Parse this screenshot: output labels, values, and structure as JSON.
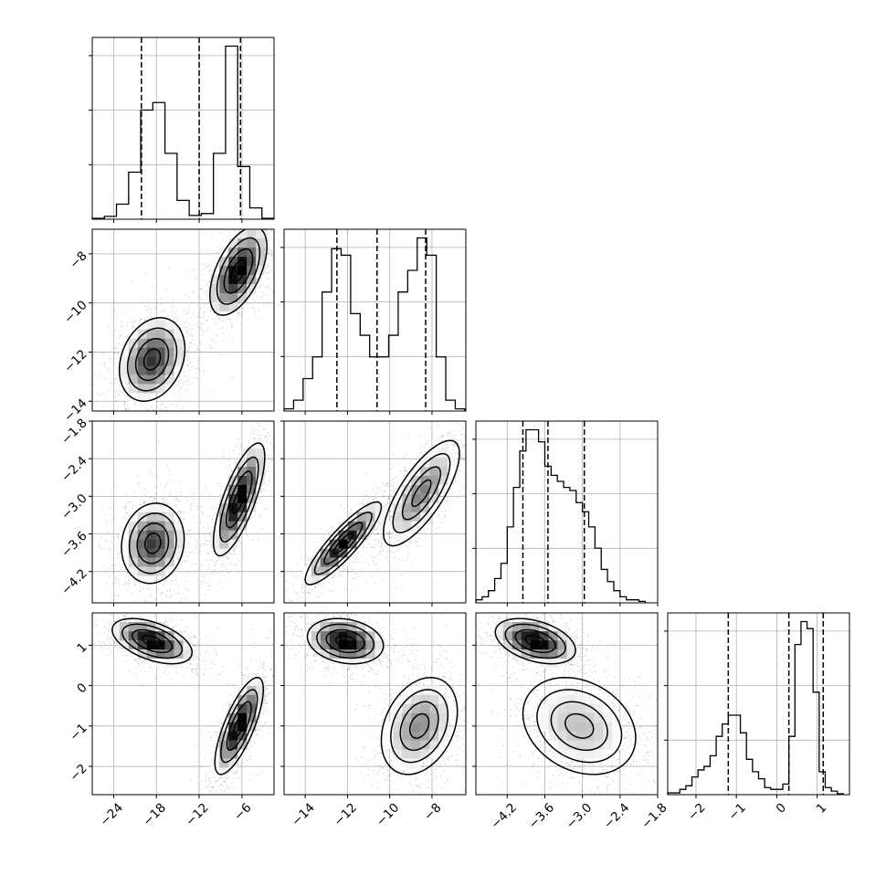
{
  "chart_data": {
    "type": "corner",
    "title": "",
    "n_params": 4,
    "params": [
      {
        "xlim": [
          -27,
          -1.5
        ],
        "ticks": [
          -24,
          -18,
          -12,
          -6
        ],
        "tick_labels": [
          "−24",
          "−18",
          "−12",
          "−6"
        ],
        "quantiles": [
          -20.1,
          -12.0,
          -6.2
        ],
        "hist": {
          "bin_edges": [
            -27,
            -25.3,
            -23.6,
            -21.9,
            -20.2,
            -18.5,
            -16.8,
            -15.1,
            -13.4,
            -11.7,
            -10.0,
            -8.3,
            -6.6,
            -4.9,
            -3.2,
            -1.5
          ],
          "counts": [
            0.5,
            1.5,
            8,
            25,
            58,
            62,
            35,
            10,
            2,
            3,
            35,
            92,
            28,
            6,
            0.5
          ]
        }
      },
      {
        "xlim": [
          -15,
          -6.4
        ],
        "ylim": [
          -14.4,
          -7.0
        ],
        "ticks": [
          -14,
          -12,
          -10,
          -8
        ],
        "tick_labels": [
          "−14",
          "−12",
          "−10",
          "−8"
        ],
        "quantiles": [
          -12.5,
          -10.6,
          -8.3
        ],
        "hist": {
          "bin_edges": [
            -15,
            -14.55,
            -14.1,
            -13.65,
            -13.2,
            -12.75,
            -12.3,
            -11.85,
            -11.4,
            -10.95,
            -10.5,
            -10.05,
            -9.6,
            -9.15,
            -8.7,
            -8.25,
            -7.8,
            -7.35,
            -6.9,
            -6.45
          ],
          "counts": [
            1,
            5,
            15,
            25,
            55,
            75,
            72,
            45,
            35,
            25,
            25,
            35,
            55,
            65,
            80,
            72,
            25,
            5,
            1
          ]
        }
      },
      {
        "xlim": [
          -4.7,
          -1.8
        ],
        "ylim": [
          -4.7,
          -1.8
        ],
        "ticks": [
          -4.2,
          -3.6,
          -3.0,
          -2.4,
          -1.8
        ],
        "tick_labels": [
          "−4.2",
          "−3.6",
          "−3.0",
          "−2.4",
          "−1.8"
        ],
        "quantiles": [
          -3.95,
          -3.55,
          -2.97
        ],
        "hist": {
          "bin_edges": [
            -4.7,
            -4.6,
            -4.5,
            -4.4,
            -4.3,
            -4.2,
            -4.1,
            -4.0,
            -3.9,
            -3.8,
            -3.7,
            -3.6,
            -3.5,
            -3.4,
            -3.3,
            -3.2,
            -3.1,
            -3.0,
            -2.9,
            -2.8,
            -2.7,
            -2.6,
            -2.5,
            -2.4,
            -2.3,
            -2.2,
            -2.1,
            -2.0
          ],
          "counts": [
            1,
            2,
            4,
            8,
            13,
            25,
            38,
            50,
            57,
            57,
            53,
            45,
            42,
            40,
            38,
            37,
            33,
            30,
            25,
            18,
            11,
            7,
            4,
            2,
            1,
            1,
            0.5
          ]
        }
      },
      {
        "xlim": [
          -2.7,
          1.8
        ],
        "ylim": [
          -2.7,
          1.8
        ],
        "ticks": [
          -2,
          -1,
          0,
          1
        ],
        "tick_labels": [
          "−2",
          "−1",
          "0",
          "1"
        ],
        "quantiles": [
          -1.2,
          0.3,
          1.15
        ],
        "hist": {
          "bin_edges": [
            -2.7,
            -2.55,
            -2.4,
            -2.25,
            -2.1,
            -1.95,
            -1.8,
            -1.65,
            -1.5,
            -1.35,
            -1.2,
            -1.05,
            -0.9,
            -0.75,
            -0.6,
            -0.45,
            -0.3,
            -0.15,
            0.0,
            0.15,
            0.3,
            0.45,
            0.6,
            0.75,
            0.9,
            1.05,
            1.2,
            1.35,
            1.5,
            1.65
          ],
          "counts": [
            1,
            1,
            3,
            5,
            10,
            14,
            16,
            22,
            33,
            40,
            45,
            45,
            35,
            20,
            13,
            9,
            4,
            3,
            3,
            6,
            33,
            85,
            98,
            94,
            58,
            13,
            4,
            2,
            0.5
          ]
        }
      }
    ],
    "pairs": [
      {
        "x": 0,
        "y": 1,
        "modes": [
          {
            "cx": -18.6,
            "cy": -12.3,
            "sx": 2.3,
            "sy": 0.85,
            "rho": 0.25,
            "w": 0.5
          },
          {
            "cx": -6.5,
            "cy": -8.7,
            "sx": 2.0,
            "sy": 0.9,
            "rho": 0.55,
            "w": 0.5
          }
        ]
      },
      {
        "x": 0,
        "y": 2,
        "modes": [
          {
            "cx": -18.5,
            "cy": -3.75,
            "sx": 2.2,
            "sy": 0.32,
            "rho": 0.1,
            "w": 0.5
          },
          {
            "cx": -6.4,
            "cy": -3.05,
            "sx": 1.8,
            "sy": 0.45,
            "rho": 0.75,
            "w": 0.5
          }
        ]
      },
      {
        "x": 0,
        "y": 3,
        "modes": [
          {
            "cx": -18.6,
            "cy": 1.1,
            "sx": 2.8,
            "sy": 0.28,
            "rho": -0.5,
            "w": 0.5
          },
          {
            "cx": -6.4,
            "cy": -1.0,
            "sx": 1.7,
            "sy": 0.6,
            "rho": 0.75,
            "w": 0.5
          }
        ]
      },
      {
        "x": 1,
        "y": 2,
        "modes": [
          {
            "cx": -12.2,
            "cy": -3.75,
            "sx": 0.9,
            "sy": 0.33,
            "rho": 0.88,
            "w": 0.5
          },
          {
            "cx": -8.5,
            "cy": -2.95,
            "sx": 0.9,
            "sy": 0.42,
            "rho": 0.75,
            "w": 0.5
          }
        ]
      },
      {
        "x": 1,
        "y": 3,
        "modes": [
          {
            "cx": -12.1,
            "cy": 1.1,
            "sx": 0.9,
            "sy": 0.28,
            "rho": -0.2,
            "w": 0.5
          },
          {
            "cx": -8.6,
            "cy": -1.0,
            "sx": 0.9,
            "sy": 0.6,
            "rho": 0.3,
            "w": 0.5
          }
        ]
      },
      {
        "x": 2,
        "y": 3,
        "modes": [
          {
            "cx": -3.75,
            "cy": 1.1,
            "sx": 0.32,
            "sy": 0.28,
            "rho": -0.4,
            "w": 0.5
          },
          {
            "cx": -3.05,
            "cy": -1.0,
            "sx": 0.45,
            "sy": 0.6,
            "rho": -0.25,
            "w": 0.5
          }
        ]
      }
    ]
  }
}
